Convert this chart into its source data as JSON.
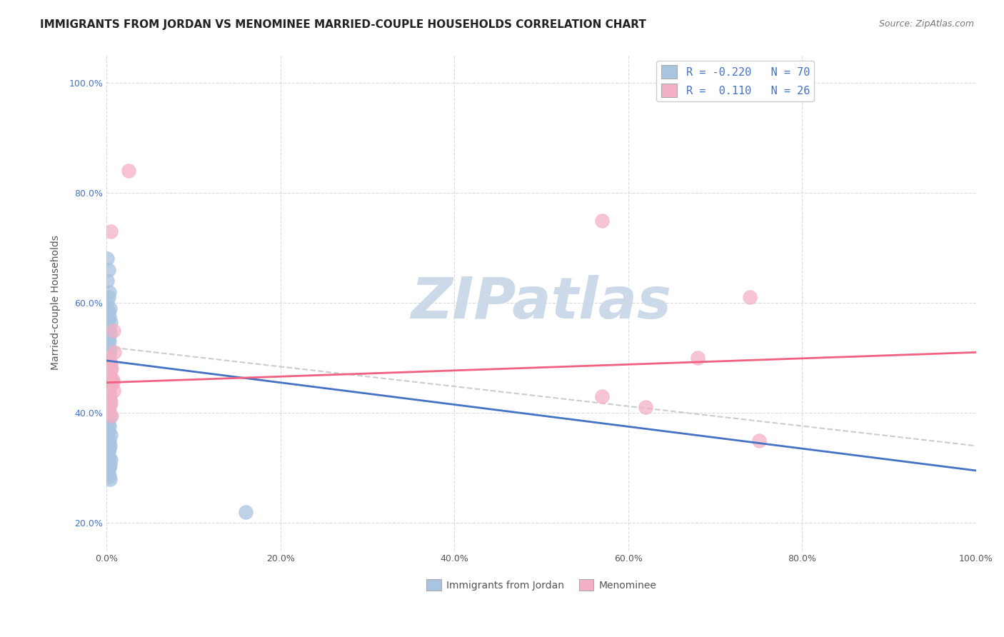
{
  "title": "IMMIGRANTS FROM JORDAN VS MENOMINEE MARRIED-COUPLE HOUSEHOLDS CORRELATION CHART",
  "source": "Source: ZipAtlas.com",
  "ylabel": "Married-couple Households",
  "legend_label1": "R = -0.220   N = 70",
  "legend_label2": "R =  0.110   N = 26",
  "legend_bottom_label1": "Immigrants from Jordan",
  "legend_bottom_label2": "Menominee",
  "blue_scatter_x": [
    0.1,
    0.2,
    0.1,
    0.3,
    0.2,
    0.1,
    0.4,
    0.2,
    0.1,
    0.3,
    0.2,
    0.5,
    0.1,
    0.3,
    0.2,
    0.4,
    0.1,
    0.2,
    0.3,
    0.1,
    0.2,
    0.4,
    0.3,
    0.1,
    0.2,
    0.3,
    0.1,
    0.2,
    0.5,
    0.1,
    0.2,
    0.3,
    0.4,
    0.1,
    0.2,
    0.3,
    0.1,
    0.2,
    0.3,
    0.4,
    0.1,
    0.2,
    0.3,
    0.1,
    0.2,
    0.4,
    0.3,
    0.1,
    0.2,
    0.3,
    0.1,
    0.2,
    0.5,
    0.1,
    0.3,
    0.2,
    0.4,
    0.3,
    0.2,
    0.1,
    0.3,
    0.5,
    0.2,
    0.4,
    0.3,
    0.1,
    0.2,
    0.3,
    0.4,
    16.0
  ],
  "blue_scatter_y": [
    68.0,
    66.0,
    64.0,
    62.0,
    61.0,
    60.0,
    59.0,
    58.5,
    58.0,
    57.5,
    57.0,
    56.5,
    56.0,
    55.5,
    55.0,
    54.5,
    54.0,
    53.5,
    53.0,
    52.5,
    52.0,
    51.5,
    51.0,
    50.5,
    50.0,
    49.5,
    49.0,
    48.5,
    48.0,
    47.5,
    47.0,
    46.5,
    46.0,
    45.5,
    45.0,
    44.5,
    44.0,
    43.5,
    43.0,
    42.5,
    42.0,
    41.5,
    41.0,
    40.5,
    40.0,
    39.5,
    39.0,
    38.5,
    38.0,
    37.5,
    37.0,
    36.5,
    36.0,
    35.5,
    35.0,
    34.5,
    34.0,
    33.5,
    33.0,
    32.5,
    32.0,
    31.5,
    31.0,
    30.5,
    30.0,
    29.5,
    29.0,
    28.5,
    28.0,
    22.0
  ],
  "pink_scatter_x": [
    2.5,
    0.5,
    0.8,
    0.4,
    0.9,
    0.6,
    0.4,
    0.7,
    0.5,
    57.0,
    57.0,
    62.0,
    68.0,
    74.0,
    75.0,
    0.3,
    0.5,
    0.4,
    0.6,
    0.7,
    0.8,
    0.3,
    0.5,
    0.4,
    0.2,
    0.6
  ],
  "pink_scatter_y": [
    84.0,
    73.0,
    55.0,
    49.0,
    51.0,
    48.0,
    46.5,
    46.0,
    45.0,
    75.0,
    43.0,
    41.0,
    50.0,
    61.0,
    35.0,
    50.0,
    49.0,
    47.0,
    46.0,
    45.5,
    44.0,
    43.5,
    42.0,
    41.5,
    40.0,
    39.5
  ],
  "blue_color": "#a8c4e0",
  "pink_color": "#f4b0c4",
  "blue_line_color": "#4472c4",
  "pink_line_color": "#f06080",
  "dashed_line_color": "#cccccc",
  "watermark": "ZIPatlas",
  "watermark_color": "#ccd9e8",
  "grid_color": "#cccccc",
  "bg_color": "#ffffff",
  "title_fontsize": 11,
  "axis_label_fontsize": 10,
  "tick_fontsize": 9,
  "source_fontsize": 9,
  "blue_slope": -0.2,
  "blue_intercept": 49.5,
  "pink_slope": 0.055,
  "pink_intercept": 45.5,
  "dashed_slope": -0.18,
  "dashed_intercept": 52.0,
  "xlim": [
    0,
    100
  ],
  "ylim": [
    15,
    105
  ],
  "x_ticks": [
    0,
    20,
    40,
    60,
    80,
    100
  ],
  "y_ticks": [
    20,
    40,
    60,
    80,
    100
  ]
}
